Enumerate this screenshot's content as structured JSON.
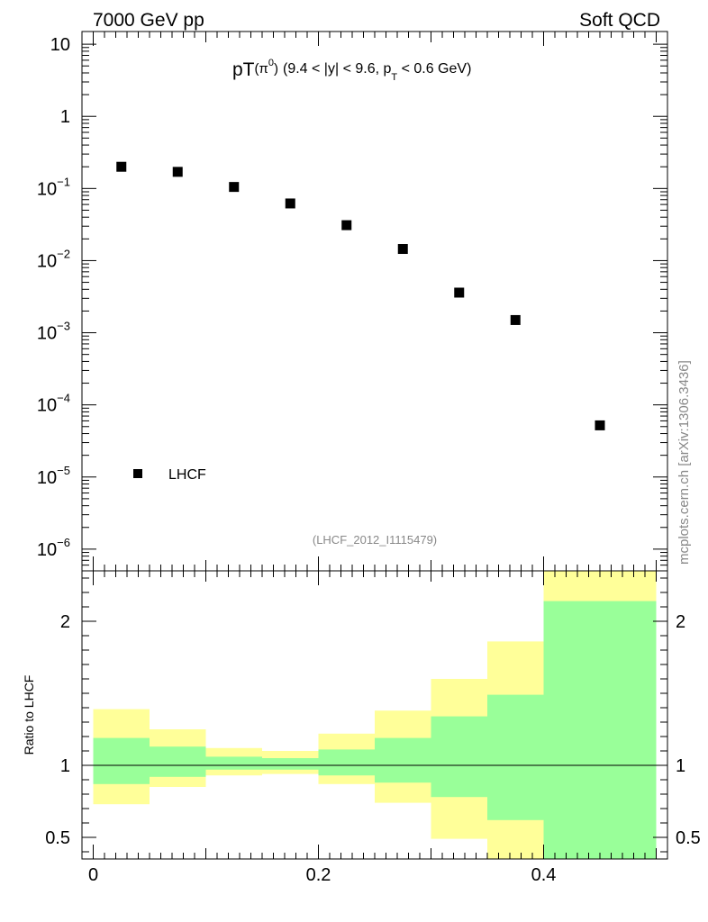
{
  "header": {
    "left": "7000 GeV pp",
    "right": "Soft QCD"
  },
  "title": {
    "main": "pT",
    "particle": "(π",
    "particle_sup": "0",
    "particle_close": ")",
    "cuts_a": "(9.4 < |y| < 9.6, p",
    "cuts_sub": "T",
    "cuts_b": " < 0.6 GeV)"
  },
  "watermark": "(LHCF_2012_I1115479)",
  "side_label": "mcplots.cern.ch [arXiv:1306.3436]",
  "ratio_ylabel": "Ratio to LHCF",
  "legend": {
    "label": "LHCF"
  },
  "chart_data": [
    {
      "type": "scatter",
      "scale": "log",
      "xlim": [
        -0.01,
        0.51
      ],
      "ylim": [
        5e-07,
        15
      ],
      "y_ticks": [
        {
          "value": 10,
          "label": "10"
        },
        {
          "value": 1,
          "label": "1"
        },
        {
          "value": 0.1,
          "base": "10",
          "exp": "−1"
        },
        {
          "value": 0.01,
          "base": "10",
          "exp": "−2"
        },
        {
          "value": 0.001,
          "base": "10",
          "exp": "−3"
        },
        {
          "value": 0.0001,
          "base": "10",
          "exp": "−4"
        },
        {
          "value": 1e-05,
          "base": "10",
          "exp": "−5"
        },
        {
          "value": 1e-06,
          "base": "10",
          "exp": "−6"
        }
      ],
      "series": [
        {
          "name": "LHCF",
          "x": [
            0.025,
            0.075,
            0.125,
            0.175,
            0.225,
            0.275,
            0.325,
            0.375,
            0.45
          ],
          "y": [
            0.2,
            0.17,
            0.105,
            0.062,
            0.031,
            0.0145,
            0.0036,
            0.0015,
            5.2e-05
          ]
        }
      ]
    },
    {
      "type": "area",
      "ylim": [
        0.35,
        2.35
      ],
      "xlim": [
        -0.01,
        0.51
      ],
      "x_ticks": [
        {
          "value": 0,
          "label": "0"
        },
        {
          "value": 0.2,
          "label": "0.2"
        },
        {
          "value": 0.4,
          "label": "0.4"
        }
      ],
      "y_ticks": [
        {
          "value": 2,
          "label": "2"
        },
        {
          "value": 1,
          "label": "1"
        },
        {
          "value": 0.5,
          "label": "0.5"
        }
      ],
      "reference_line": 1,
      "bins": [
        {
          "x0": 0.0,
          "x1": 0.05,
          "yellow": [
            0.73,
            1.39
          ],
          "green": [
            0.87,
            1.19
          ]
        },
        {
          "x0": 0.05,
          "x1": 0.1,
          "yellow": [
            0.85,
            1.25
          ],
          "green": [
            0.92,
            1.13
          ]
        },
        {
          "x0": 0.1,
          "x1": 0.15,
          "yellow": [
            0.93,
            1.12
          ],
          "green": [
            0.97,
            1.06
          ]
        },
        {
          "x0": 0.15,
          "x1": 0.2,
          "yellow": [
            0.94,
            1.1
          ],
          "green": [
            0.97,
            1.05
          ]
        },
        {
          "x0": 0.2,
          "x1": 0.25,
          "yellow": [
            0.87,
            1.22
          ],
          "green": [
            0.93,
            1.11
          ]
        },
        {
          "x0": 0.25,
          "x1": 0.3,
          "yellow": [
            0.74,
            1.38
          ],
          "green": [
            0.88,
            1.19
          ]
        },
        {
          "x0": 0.3,
          "x1": 0.35,
          "yellow": [
            0.49,
            1.6
          ],
          "green": [
            0.78,
            1.34
          ]
        },
        {
          "x0": 0.35,
          "x1": 0.4,
          "yellow": [
            0.35,
            1.86
          ],
          "green": [
            0.62,
            1.49
          ]
        },
        {
          "x0": 0.4,
          "x1": 0.5,
          "yellow": [
            0.35,
            2.35
          ],
          "green": [
            0.35,
            2.14
          ]
        }
      ]
    }
  ],
  "colors": {
    "yellow_band": "#ffff99",
    "green_band": "#99ff99",
    "marker": "#000000"
  }
}
